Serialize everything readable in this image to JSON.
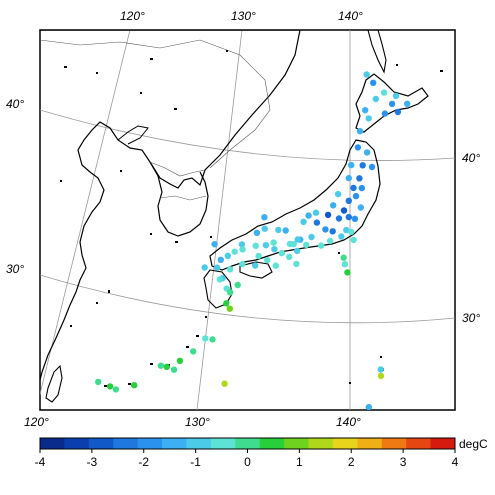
{
  "map": {
    "graticule_labels": {
      "top": [
        "120°",
        "130°",
        "140°"
      ],
      "left": [
        "40°",
        "30°"
      ],
      "right": [
        "40°",
        "30°"
      ],
      "bottom": [
        "120°",
        "130°",
        "140°"
      ]
    }
  },
  "colorbar": {
    "ticks": [
      "-4",
      "-3",
      "-2",
      "-1",
      "0",
      "1",
      "2",
      "3",
      "4"
    ],
    "unit": "degC",
    "colors": [
      "#0a2a8c",
      "#0b3fb0",
      "#1158c9",
      "#1e78dd",
      "#2b93ee",
      "#3cb0f2",
      "#4ccbe9",
      "#5ee2d6",
      "#3fdc8f",
      "#27cf3a",
      "#6fd21f",
      "#b0d81a",
      "#e8d41a",
      "#f0ae17",
      "#ef7a14",
      "#e64612",
      "#d61a10"
    ]
  },
  "stations": [
    {
      "lon": 141.6,
      "lat": 45.3,
      "c": "#4ccbe9"
    },
    {
      "lon": 142.2,
      "lat": 44.8,
      "c": "#2b93ee"
    },
    {
      "lon": 143.2,
      "lat": 44.2,
      "c": "#5ee2d6"
    },
    {
      "lon": 144.3,
      "lat": 44.0,
      "c": "#4ccbe9"
    },
    {
      "lon": 145.3,
      "lat": 43.5,
      "c": "#3cb0f2"
    },
    {
      "lon": 144.4,
      "lat": 43.0,
      "c": "#1e78dd"
    },
    {
      "lon": 143.2,
      "lat": 42.9,
      "c": "#2b93ee"
    },
    {
      "lon": 141.4,
      "lat": 43.1,
      "c": "#3cb0f2"
    },
    {
      "lon": 141.7,
      "lat": 42.6,
      "c": "#4ccbe9"
    },
    {
      "lon": 140.9,
      "lat": 41.8,
      "c": "#3cb0f2"
    },
    {
      "lon": 142.4,
      "lat": 43.8,
      "c": "#4ccbe9"
    },
    {
      "lon": 143.9,
      "lat": 43.5,
      "c": "#2b93ee"
    },
    {
      "lon": 140.7,
      "lat": 40.8,
      "c": "#2b93ee"
    },
    {
      "lon": 141.5,
      "lat": 40.5,
      "c": "#3cb0f2"
    },
    {
      "lon": 141.1,
      "lat": 39.7,
      "c": "#1e78dd"
    },
    {
      "lon": 140.1,
      "lat": 39.7,
      "c": "#3cb0f2"
    },
    {
      "lon": 141.9,
      "lat": 39.6,
      "c": "#2b93ee"
    },
    {
      "lon": 140.8,
      "lat": 38.9,
      "c": "#1e78dd"
    },
    {
      "lon": 141.0,
      "lat": 38.3,
      "c": "#2b93ee"
    },
    {
      "lon": 140.3,
      "lat": 38.3,
      "c": "#1e78dd"
    },
    {
      "lon": 139.9,
      "lat": 38.9,
      "c": "#3cb0f2"
    },
    {
      "lon": 140.5,
      "lat": 37.8,
      "c": "#2b93ee"
    },
    {
      "lon": 139.0,
      "lat": 37.9,
      "c": "#4ccbe9"
    },
    {
      "lon": 140.9,
      "lat": 37.1,
      "c": "#3cb0f2"
    },
    {
      "lon": 139.9,
      "lat": 37.5,
      "c": "#1e78dd"
    },
    {
      "lon": 139.5,
      "lat": 36.9,
      "c": "#1158c9"
    },
    {
      "lon": 140.4,
      "lat": 36.4,
      "c": "#2b93ee"
    },
    {
      "lon": 139.9,
      "lat": 36.5,
      "c": "#1e78dd"
    },
    {
      "lon": 139.1,
      "lat": 36.4,
      "c": "#1e78dd"
    },
    {
      "lon": 138.2,
      "lat": 36.6,
      "c": "#1158c9"
    },
    {
      "lon": 138.6,
      "lat": 37.2,
      "c": "#3cb0f2"
    },
    {
      "lon": 137.2,
      "lat": 36.7,
      "c": "#4ccbe9"
    },
    {
      "lon": 136.6,
      "lat": 36.5,
      "c": "#3cb0f2"
    },
    {
      "lon": 136.2,
      "lat": 36.1,
      "c": "#4ccbe9"
    },
    {
      "lon": 137.3,
      "lat": 36.1,
      "c": "#1e78dd"
    },
    {
      "lon": 138.0,
      "lat": 35.7,
      "c": "#2b93ee"
    },
    {
      "lon": 138.6,
      "lat": 35.6,
      "c": "#1e78dd"
    },
    {
      "lon": 139.7,
      "lat": 35.7,
      "c": "#4ccbe9"
    },
    {
      "lon": 140.1,
      "lat": 35.6,
      "c": "#5ee2d6"
    },
    {
      "lon": 140.3,
      "lat": 35.1,
      "c": "#5ee2d6"
    },
    {
      "lon": 139.3,
      "lat": 35.3,
      "c": "#4ccbe9"
    },
    {
      "lon": 138.4,
      "lat": 35.0,
      "c": "#5ee2d6"
    },
    {
      "lon": 137.7,
      "lat": 34.7,
      "c": "#5ee2d6"
    },
    {
      "lon": 136.9,
      "lat": 35.2,
      "c": "#4ccbe9"
    },
    {
      "lon": 136.5,
      "lat": 34.7,
      "c": "#5ee2d6"
    },
    {
      "lon": 136.0,
      "lat": 35.0,
      "c": "#3cb0f2"
    },
    {
      "lon": 135.8,
      "lat": 35.0,
      "c": "#4ccbe9"
    },
    {
      "lon": 135.5,
      "lat": 34.7,
      "c": "#5ee2d6"
    },
    {
      "lon": 135.2,
      "lat": 34.7,
      "c": "#5ee2d6"
    },
    {
      "lon": 135.8,
      "lat": 34.3,
      "c": "#4ccbe9"
    },
    {
      "lon": 135.2,
      "lat": 33.9,
      "c": "#5ee2d6"
    },
    {
      "lon": 135.8,
      "lat": 33.5,
      "c": "#5ee2d6"
    },
    {
      "lon": 134.8,
      "lat": 35.5,
      "c": "#3cb0f2"
    },
    {
      "lon": 134.2,
      "lat": 35.5,
      "c": "#4ccbe9"
    },
    {
      "lon": 133.1,
      "lat": 35.5,
      "c": "#4ccbe9"
    },
    {
      "lon": 132.5,
      "lat": 35.2,
      "c": "#3cb0f2"
    },
    {
      "lon": 133.9,
      "lat": 34.7,
      "c": "#5ee2d6"
    },
    {
      "lon": 133.3,
      "lat": 34.5,
      "c": "#4ccbe9"
    },
    {
      "lon": 132.5,
      "lat": 34.4,
      "c": "#5ee2d6"
    },
    {
      "lon": 131.4,
      "lat": 34.4,
      "c": "#4ccbe9"
    },
    {
      "lon": 131.5,
      "lat": 34.1,
      "c": "#5ee2d6"
    },
    {
      "lon": 134.6,
      "lat": 34.1,
      "c": "#5ee2d6"
    },
    {
      "lon": 134.0,
      "lat": 34.3,
      "c": "#4ccbe9"
    },
    {
      "lon": 133.5,
      "lat": 33.6,
      "c": "#5ee2d6"
    },
    {
      "lon": 132.8,
      "lat": 33.8,
      "c": "#5ee2d6"
    },
    {
      "lon": 132.6,
      "lat": 33.2,
      "c": "#4ccbe9"
    },
    {
      "lon": 134.2,
      "lat": 33.3,
      "c": "#5ee2d6"
    },
    {
      "lon": 130.4,
      "lat": 33.6,
      "c": "#4ccbe9"
    },
    {
      "lon": 130.9,
      "lat": 33.9,
      "c": "#5ee2d6"
    },
    {
      "lon": 129.9,
      "lat": 33.3,
      "c": "#3cb0f2"
    },
    {
      "lon": 129.7,
      "lat": 32.8,
      "c": "#4ccbe9"
    },
    {
      "lon": 130.7,
      "lat": 32.8,
      "c": "#5ee2d6"
    },
    {
      "lon": 131.6,
      "lat": 33.2,
      "c": "#5ee2d6"
    },
    {
      "lon": 131.4,
      "lat": 31.9,
      "c": "#3fdc8f"
    },
    {
      "lon": 130.6,
      "lat": 31.6,
      "c": "#5ee2d6"
    },
    {
      "lon": 130.2,
      "lat": 32.2,
      "c": "#4ccbe9"
    },
    {
      "lon": 130.9,
      "lat": 31.4,
      "c": "#3fdc8f"
    },
    {
      "lon": 130.7,
      "lat": 30.7,
      "c": "#27cf3a"
    },
    {
      "lon": 131.0,
      "lat": 30.4,
      "c": "#6fd21f"
    },
    {
      "lon": 129.3,
      "lat": 34.2,
      "c": "#3cb0f2"
    },
    {
      "lon": 128.8,
      "lat": 32.7,
      "c": "#4ccbe9"
    },
    {
      "lon": 130.0,
      "lat": 32.1,
      "c": "#5ee2d6"
    },
    {
      "lon": 133.0,
      "lat": 36.2,
      "c": "#3cb0f2"
    },
    {
      "lon": 139.5,
      "lat": 34.0,
      "c": "#3fdc8f"
    },
    {
      "lon": 139.8,
      "lat": 33.1,
      "c": "#27cf3a"
    },
    {
      "lon": 139.6,
      "lat": 33.6,
      "c": "#5ee2d6"
    },
    {
      "lon": 142.2,
      "lat": 26.7,
      "c": "#b0d81a"
    },
    {
      "lon": 142.2,
      "lat": 27.1,
      "c": "#4ccbe9"
    },
    {
      "lon": 141.3,
      "lat": 24.8,
      "c": "#3cb0f2"
    },
    {
      "lon": 130.0,
      "lat": 28.4,
      "c": "#3fdc8f"
    },
    {
      "lon": 129.5,
      "lat": 28.4,
      "c": "#5ee2d6"
    },
    {
      "lon": 128.8,
      "lat": 27.5,
      "c": "#3fdc8f"
    },
    {
      "lon": 128.0,
      "lat": 26.8,
      "c": "#27cf3a"
    },
    {
      "lon": 127.7,
      "lat": 26.2,
      "c": "#3fdc8f"
    },
    {
      "lon": 127.2,
      "lat": 26.3,
      "c": "#27cf3a"
    },
    {
      "lon": 126.8,
      "lat": 26.3,
      "c": "#3fdc8f"
    },
    {
      "lon": 131.2,
      "lat": 25.8,
      "c": "#b0d81a"
    },
    {
      "lon": 125.3,
      "lat": 24.8,
      "c": "#27cf3a"
    },
    {
      "lon": 124.2,
      "lat": 24.3,
      "c": "#3fdc8f"
    },
    {
      "lon": 123.8,
      "lat": 24.4,
      "c": "#27cf3a"
    },
    {
      "lon": 123.0,
      "lat": 24.5,
      "c": "#3fdc8f"
    }
  ]
}
